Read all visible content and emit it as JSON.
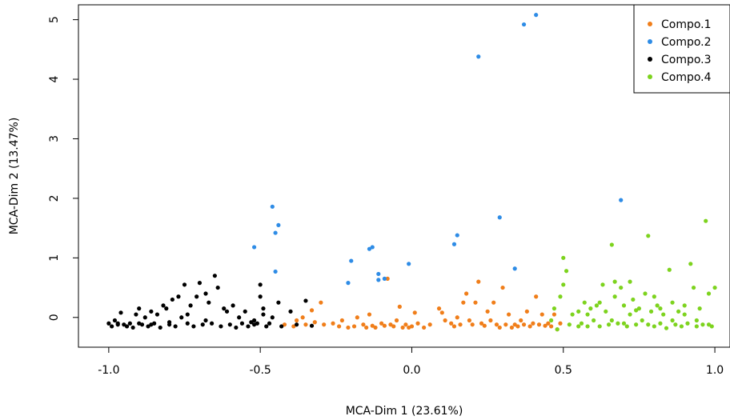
{
  "chart_data": {
    "type": "scatter",
    "xlabel": "MCA-Dim 1 (23.61%)",
    "ylabel": "MCA-Dim 2 (13.47%)",
    "xlim": [
      -1.1,
      1.05
    ],
    "ylim": [
      -0.5,
      5.25
    ],
    "x_ticks": [
      -1.0,
      -0.5,
      0.0,
      0.5,
      1.0
    ],
    "x_tick_labels": [
      "-1.0",
      "-0.5",
      "0.0",
      "0.5",
      "1.0"
    ],
    "y_ticks": [
      0,
      1,
      2,
      3,
      4,
      5
    ],
    "y_tick_labels": [
      "0",
      "1",
      "2",
      "3",
      "4",
      "5"
    ],
    "grid": false,
    "legend_position": "top-right",
    "series": [
      {
        "name": "Compo.1",
        "color": "#F07E1A",
        "points": [
          [
            -0.42,
            -0.12
          ],
          [
            -0.39,
            -0.15
          ],
          [
            -0.38,
            -0.05
          ],
          [
            -0.36,
            0.0
          ],
          [
            -0.35,
            -0.12
          ],
          [
            -0.33,
            0.12
          ],
          [
            -0.32,
            -0.08
          ],
          [
            -0.3,
            0.25
          ],
          [
            -0.29,
            -0.12
          ],
          [
            -0.26,
            -0.1
          ],
          [
            -0.24,
            -0.15
          ],
          [
            -0.23,
            -0.05
          ],
          [
            -0.21,
            -0.17
          ],
          [
            -0.19,
            -0.15
          ],
          [
            -0.18,
            0.0
          ],
          [
            -0.16,
            -0.12
          ],
          [
            -0.15,
            -0.17
          ],
          [
            -0.14,
            0.05
          ],
          [
            -0.13,
            -0.14
          ],
          [
            -0.12,
            -0.17
          ],
          [
            -0.1,
            -0.1
          ],
          [
            -0.09,
            -0.14
          ],
          [
            -0.08,
            0.65
          ],
          [
            -0.07,
            -0.12
          ],
          [
            -0.06,
            -0.15
          ],
          [
            -0.05,
            -0.05
          ],
          [
            -0.04,
            0.18
          ],
          [
            -0.03,
            -0.17
          ],
          [
            -0.02,
            -0.12
          ],
          [
            -0.01,
            -0.17
          ],
          [
            0.0,
            -0.15
          ],
          [
            0.01,
            0.08
          ],
          [
            0.02,
            -0.1
          ],
          [
            0.04,
            -0.17
          ],
          [
            0.06,
            -0.12
          ],
          [
            0.09,
            0.15
          ],
          [
            0.1,
            0.08
          ],
          [
            0.11,
            -0.05
          ],
          [
            0.13,
            -0.1
          ],
          [
            0.14,
            -0.15
          ],
          [
            0.15,
            0.0
          ],
          [
            0.16,
            -0.12
          ],
          [
            0.17,
            0.25
          ],
          [
            0.18,
            0.4
          ],
          [
            0.19,
            -0.05
          ],
          [
            0.2,
            -0.12
          ],
          [
            0.21,
            0.25
          ],
          [
            0.22,
            0.6
          ],
          [
            0.23,
            -0.1
          ],
          [
            0.24,
            -0.14
          ],
          [
            0.25,
            0.1
          ],
          [
            0.26,
            -0.05
          ],
          [
            0.27,
            0.25
          ],
          [
            0.28,
            -0.12
          ],
          [
            0.29,
            -0.17
          ],
          [
            0.3,
            0.5
          ],
          [
            0.31,
            -0.12
          ],
          [
            0.32,
            0.05
          ],
          [
            0.33,
            -0.17
          ],
          [
            0.34,
            -0.12
          ],
          [
            0.35,
            -0.15
          ],
          [
            0.36,
            -0.05
          ],
          [
            0.37,
            -0.12
          ],
          [
            0.38,
            0.1
          ],
          [
            0.39,
            -0.15
          ],
          [
            0.4,
            -0.1
          ],
          [
            0.41,
            0.35
          ],
          [
            0.42,
            -0.12
          ],
          [
            0.43,
            0.05
          ],
          [
            0.44,
            -0.14
          ],
          [
            0.45,
            -0.1
          ],
          [
            0.46,
            -0.15
          ],
          [
            0.47,
            0.05
          ],
          [
            0.48,
            -0.2
          ],
          [
            0.49,
            -0.1
          ]
        ]
      },
      {
        "name": "Compo.2",
        "color": "#2E8CE6",
        "points": [
          [
            0.41,
            5.08
          ],
          [
            0.37,
            4.92
          ],
          [
            0.22,
            4.38
          ],
          [
            0.69,
            1.97
          ],
          [
            -0.46,
            1.86
          ],
          [
            -0.44,
            1.55
          ],
          [
            -0.45,
            1.42
          ],
          [
            0.29,
            1.68
          ],
          [
            0.15,
            1.38
          ],
          [
            0.14,
            1.23
          ],
          [
            -0.52,
            1.18
          ],
          [
            -0.13,
            1.18
          ],
          [
            -0.14,
            1.15
          ],
          [
            -0.2,
            0.95
          ],
          [
            -0.01,
            0.9
          ],
          [
            0.34,
            0.82
          ],
          [
            -0.45,
            0.77
          ],
          [
            -0.11,
            0.73
          ],
          [
            -0.09,
            0.65
          ],
          [
            -0.11,
            0.63
          ],
          [
            -0.21,
            0.58
          ]
        ]
      },
      {
        "name": "Compo.3",
        "color": "#000000",
        "points": [
          [
            -1.0,
            -0.1
          ],
          [
            -0.99,
            -0.15
          ],
          [
            -0.98,
            -0.05
          ],
          [
            -0.97,
            -0.12
          ],
          [
            -0.96,
            0.08
          ],
          [
            -0.95,
            -0.12
          ],
          [
            -0.94,
            -0.15
          ],
          [
            -0.93,
            -0.1
          ],
          [
            -0.92,
            -0.17
          ],
          [
            -0.91,
            0.05
          ],
          [
            -0.9,
            0.15
          ],
          [
            -0.89,
            -0.12
          ],
          [
            -0.88,
            0.0
          ],
          [
            -0.87,
            -0.15
          ],
          [
            -0.86,
            0.1
          ],
          [
            -0.85,
            -0.1
          ],
          [
            -0.84,
            0.05
          ],
          [
            -0.83,
            -0.17
          ],
          [
            -0.82,
            0.2
          ],
          [
            -0.81,
            0.15
          ],
          [
            -0.8,
            -0.12
          ],
          [
            -0.79,
            0.3
          ],
          [
            -0.78,
            -0.15
          ],
          [
            -0.77,
            0.35
          ],
          [
            -0.76,
            0.0
          ],
          [
            -0.75,
            0.55
          ],
          [
            -0.74,
            -0.1
          ],
          [
            -0.73,
            0.2
          ],
          [
            -0.72,
            -0.15
          ],
          [
            -0.71,
            0.35
          ],
          [
            -0.7,
            0.58
          ],
          [
            -0.69,
            -0.12
          ],
          [
            -0.68,
            0.4
          ],
          [
            -0.67,
            0.25
          ],
          [
            -0.66,
            -0.1
          ],
          [
            -0.65,
            0.7
          ],
          [
            -0.64,
            0.5
          ],
          [
            -0.63,
            -0.15
          ],
          [
            -0.62,
            0.15
          ],
          [
            -0.61,
            0.1
          ],
          [
            -0.6,
            -0.12
          ],
          [
            -0.59,
            0.2
          ],
          [
            -0.58,
            -0.17
          ],
          [
            -0.57,
            0.0
          ],
          [
            -0.56,
            -0.1
          ],
          [
            -0.55,
            0.1
          ],
          [
            -0.54,
            -0.15
          ],
          [
            -0.53,
            -0.08
          ],
          [
            -0.52,
            -0.12
          ],
          [
            -0.51,
            -0.1
          ],
          [
            -0.5,
            0.35
          ],
          [
            -0.49,
            0.15
          ],
          [
            -0.48,
            -0.15
          ],
          [
            -0.47,
            -0.1
          ],
          [
            -0.46,
            0.0
          ],
          [
            -0.44,
            0.25
          ],
          [
            -0.43,
            -0.15
          ],
          [
            -0.4,
            0.1
          ],
          [
            -0.38,
            -0.12
          ],
          [
            -0.35,
            0.28
          ],
          [
            -0.33,
            -0.14
          ],
          [
            -0.5,
            0.55
          ],
          [
            -0.52,
            -0.05
          ],
          [
            -0.49,
            0.05
          ],
          [
            -0.97,
            -0.1
          ],
          [
            -0.9,
            -0.1
          ],
          [
            -0.86,
            -0.12
          ],
          [
            -0.8,
            -0.08
          ],
          [
            -0.74,
            0.05
          ],
          [
            -0.68,
            -0.05
          ]
        ]
      },
      {
        "name": "Compo.4",
        "color": "#7DD31E",
        "points": [
          [
            0.5,
            1.0
          ],
          [
            0.51,
            0.78
          ],
          [
            0.5,
            0.55
          ],
          [
            0.49,
            0.35
          ],
          [
            0.47,
            0.15
          ],
          [
            0.46,
            -0.05
          ],
          [
            0.48,
            -0.2
          ],
          [
            0.52,
            -0.12
          ],
          [
            0.53,
            0.05
          ],
          [
            0.55,
            0.1
          ],
          [
            0.56,
            -0.1
          ],
          [
            0.57,
            0.25
          ],
          [
            0.58,
            -0.15
          ],
          [
            0.59,
            0.15
          ],
          [
            0.6,
            -0.05
          ],
          [
            0.61,
            0.2
          ],
          [
            0.62,
            -0.15
          ],
          [
            0.63,
            0.55
          ],
          [
            0.64,
            0.1
          ],
          [
            0.65,
            -0.12
          ],
          [
            0.66,
            1.22
          ],
          [
            0.67,
            0.35
          ],
          [
            0.68,
            -0.1
          ],
          [
            0.69,
            0.5
          ],
          [
            0.7,
            0.2
          ],
          [
            0.71,
            -0.15
          ],
          [
            0.72,
            0.05
          ],
          [
            0.73,
            0.3
          ],
          [
            0.74,
            -0.12
          ],
          [
            0.75,
            0.15
          ],
          [
            0.76,
            -0.05
          ],
          [
            0.77,
            0.4
          ],
          [
            0.78,
            1.37
          ],
          [
            0.79,
            0.1
          ],
          [
            0.8,
            -0.15
          ],
          [
            0.81,
            0.2
          ],
          [
            0.82,
            -0.1
          ],
          [
            0.83,
            0.05
          ],
          [
            0.84,
            -0.18
          ],
          [
            0.85,
            0.8
          ],
          [
            0.86,
            0.25
          ],
          [
            0.87,
            -0.12
          ],
          [
            0.88,
            0.1
          ],
          [
            0.89,
            -0.15
          ],
          [
            0.9,
            0.05
          ],
          [
            0.91,
            -0.1
          ],
          [
            0.92,
            0.9
          ],
          [
            0.93,
            0.5
          ],
          [
            0.94,
            -0.15
          ],
          [
            0.95,
            0.15
          ],
          [
            0.96,
            -0.12
          ],
          [
            0.97,
            1.62
          ],
          [
            0.98,
            0.4
          ],
          [
            0.99,
            -0.15
          ],
          [
            1.0,
            0.5
          ],
          [
            0.55,
            -0.15
          ],
          [
            0.58,
            0.05
          ],
          [
            0.62,
            0.25
          ],
          [
            0.66,
            -0.05
          ],
          [
            0.7,
            -0.1
          ],
          [
            0.74,
            0.12
          ],
          [
            0.78,
            -0.12
          ],
          [
            0.82,
            0.15
          ],
          [
            0.86,
            -0.05
          ],
          [
            0.9,
            0.2
          ],
          [
            0.94,
            -0.05
          ],
          [
            0.98,
            -0.12
          ],
          [
            0.67,
            0.6
          ],
          [
            0.72,
            0.6
          ],
          [
            0.8,
            0.35
          ]
        ]
      }
    ]
  }
}
